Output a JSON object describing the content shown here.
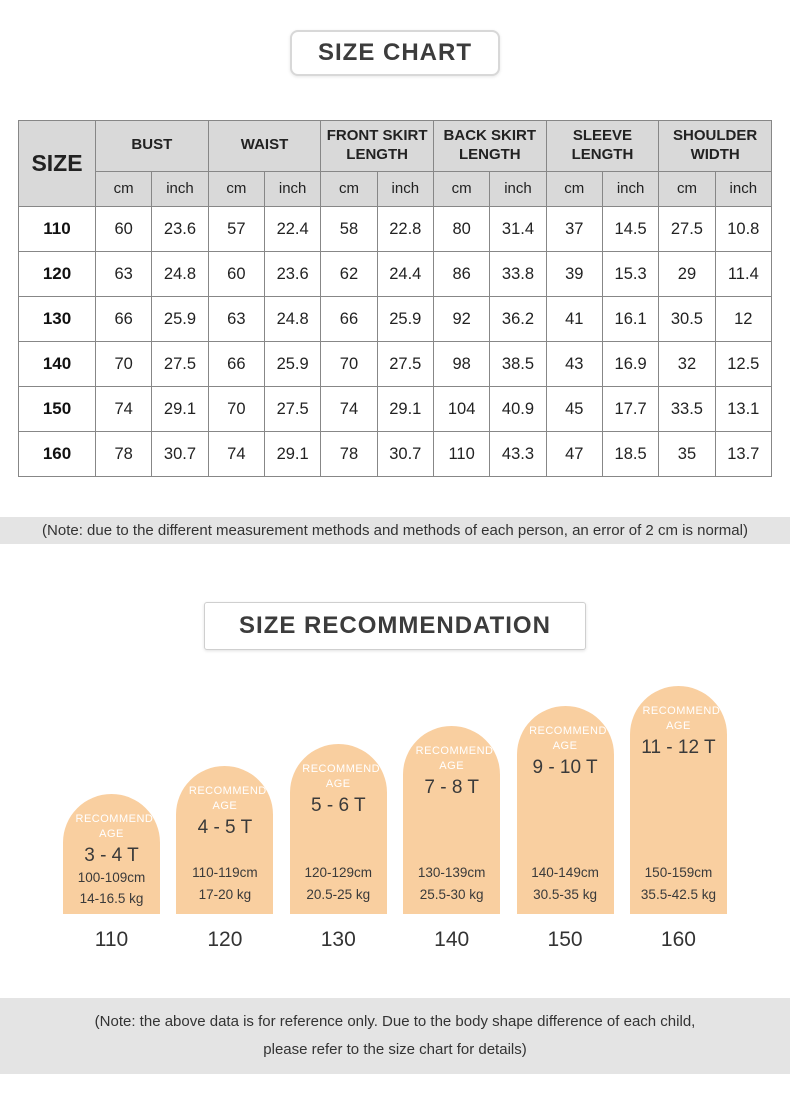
{
  "header": {
    "title": "SIZE CHART"
  },
  "size_table": {
    "corner_label": "SIZE",
    "unit_labels": [
      "cm",
      "inch"
    ],
    "groups": [
      {
        "label": "BUST"
      },
      {
        "label": "WAIST"
      },
      {
        "label": "FRONT SKIRT LENGTH"
      },
      {
        "label": "BACK SKIRT LENGTH"
      },
      {
        "label": "SLEEVE LENGTH"
      },
      {
        "label": "SHOULDER WIDTH"
      }
    ],
    "rows": [
      {
        "size": "110",
        "values": [
          "60",
          "23.6",
          "57",
          "22.4",
          "58",
          "22.8",
          "80",
          "31.4",
          "37",
          "14.5",
          "27.5",
          "10.8"
        ]
      },
      {
        "size": "120",
        "values": [
          "63",
          "24.8",
          "60",
          "23.6",
          "62",
          "24.4",
          "86",
          "33.8",
          "39",
          "15.3",
          "29",
          "11.4"
        ]
      },
      {
        "size": "130",
        "values": [
          "66",
          "25.9",
          "63",
          "24.8",
          "66",
          "25.9",
          "92",
          "36.2",
          "41",
          "16.1",
          "30.5",
          "12"
        ]
      },
      {
        "size": "140",
        "values": [
          "70",
          "27.5",
          "66",
          "25.9",
          "70",
          "27.5",
          "98",
          "38.5",
          "43",
          "16.9",
          "32",
          "12.5"
        ]
      },
      {
        "size": "150",
        "values": [
          "74",
          "29.1",
          "70",
          "27.5",
          "74",
          "29.1",
          "104",
          "40.9",
          "45",
          "17.7",
          "33.5",
          "13.1"
        ]
      },
      {
        "size": "160",
        "values": [
          "78",
          "30.7",
          "74",
          "29.1",
          "78",
          "30.7",
          "110",
          "43.3",
          "47",
          "18.5",
          "35",
          "13.7"
        ]
      }
    ]
  },
  "measurement_note": "(Note: due to the different measurement methods and methods of each person, an error of 2 cm is normal)",
  "recommendation": {
    "title": "SIZE RECOMMENDATION",
    "badge_label": "RECOMMEND AGE",
    "items": [
      {
        "size": "110",
        "age": "3 - 4 T",
        "height": "100-109cm",
        "weight": "14-16.5 kg"
      },
      {
        "size": "120",
        "age": "4 - 5 T",
        "height": "110-119cm",
        "weight": "17-20 kg"
      },
      {
        "size": "130",
        "age": "5 - 6 T",
        "height": "120-129cm",
        "weight": "20.5-25 kg"
      },
      {
        "size": "140",
        "age": "7 - 8 T",
        "height": "130-139cm",
        "weight": "25.5-30 kg"
      },
      {
        "size": "150",
        "age": "9 - 10 T",
        "height": "140-149cm",
        "weight": "30.5-35 kg"
      },
      {
        "size": "160",
        "age": "11 - 12 T",
        "height": "150-159cm",
        "weight": "35.5-42.5 kg"
      }
    ]
  },
  "reference_note": {
    "line1": "(Note: the above data is for reference only. Due to the body shape difference of each child,",
    "line2": "please refer to the size chart for details)"
  },
  "colors": {
    "dome_fill": "#f9cfa0",
    "table_header_bg": "#d9d9d9",
    "note_bg": "#e4e4e4",
    "text": "#333333"
  }
}
